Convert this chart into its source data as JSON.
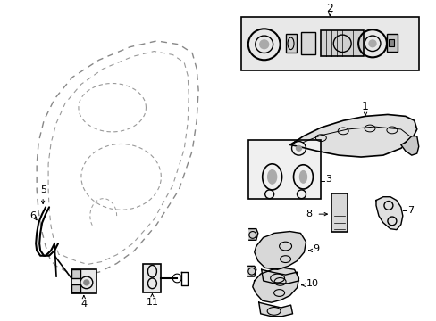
{
  "bg_color": "#ffffff",
  "line_color": "#000000",
  "gray_fill": "#e8e8e8",
  "dark_gray": "#cccccc",
  "light_gray": "#f0f0f0",
  "figsize": [
    4.89,
    3.6
  ],
  "dpi": 100
}
